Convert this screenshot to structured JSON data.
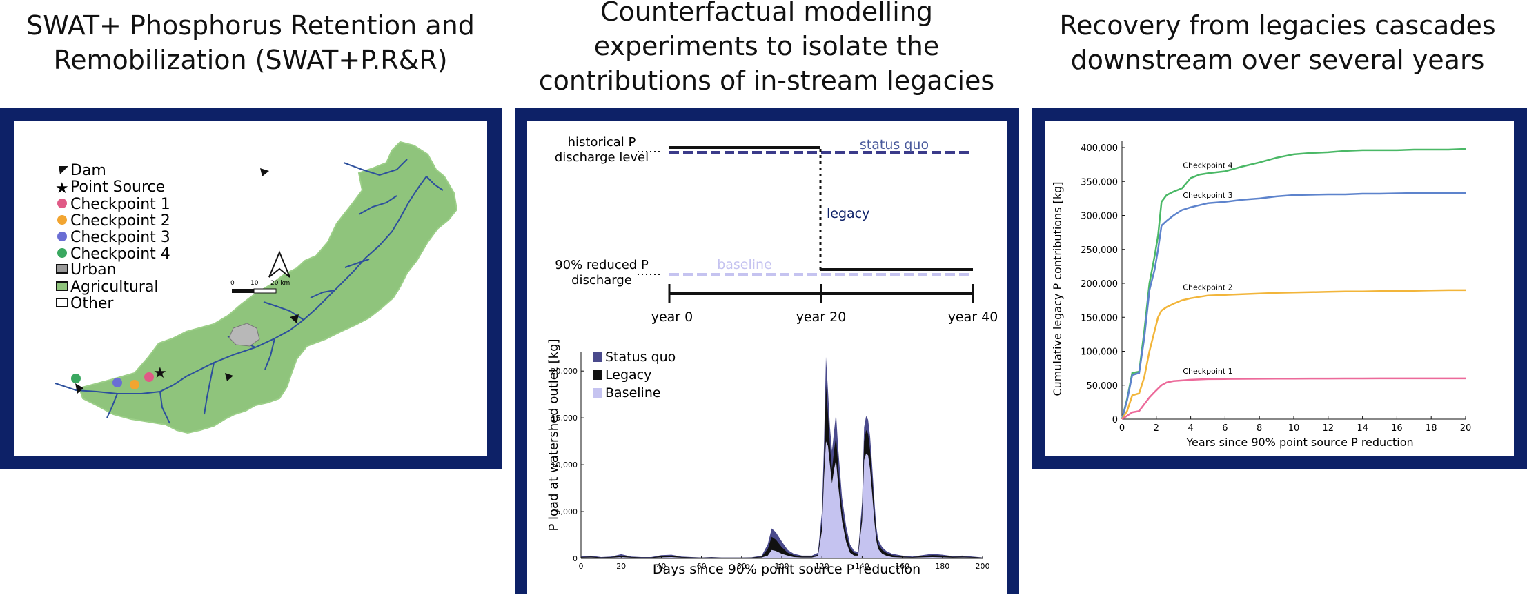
{
  "panel1": {
    "title_line1": "SWAT+ Phosphorus Retention and",
    "title_line2": "Remobilization (SWAT+P.R&R)",
    "legend": [
      "Dam",
      "Point Source",
      "Checkpoint 1",
      "Checkpoint 2",
      "Checkpoint 3",
      "Checkpoint 4",
      "Urban",
      "Agricultural",
      "Other"
    ],
    "scalebar": {
      "ticks": [
        "0",
        "10",
        "20 km"
      ]
    },
    "colors": {
      "checkpoint1": "#e05a86",
      "checkpoint2": "#f2a531",
      "checkpoint3": "#6a6ed4",
      "checkpoint4": "#3aa860",
      "agricultural": "#8fc47c",
      "stream": "#2c4f9c",
      "urban": "#9a9a9a"
    }
  },
  "panel2": {
    "title_line1": "Counterfactual modelling",
    "title_line2": "experiments to isolate the",
    "title_line3": "contributions of in-stream legacies",
    "schematic": {
      "historical_label_line1": "historical P",
      "historical_label_line2": "discharge level",
      "reduced_label_line1": "90% reduced P",
      "reduced_label_line2": "discharge",
      "status_quo": "status quo",
      "legacy": "legacy",
      "baseline": "baseline",
      "ticks": [
        "year 0",
        "year 20",
        "year 40"
      ]
    },
    "chart_data": {
      "type": "area",
      "xlabel": "Days since 90% point source P reduction",
      "ylabel": "P load at watershed outlet [kg]",
      "xlim": [
        0,
        200
      ],
      "ylim": [
        0,
        22000
      ],
      "xticks": [
        0,
        20,
        40,
        60,
        80,
        100,
        120,
        140,
        160,
        180,
        200
      ],
      "yticks": [
        0,
        5000,
        10000,
        15000,
        20000
      ],
      "ytick_labels": [
        "0",
        "5,000",
        "10,000",
        "15,000",
        "20,000"
      ],
      "legend": [
        "Status quo",
        "Legacy",
        "Baseline"
      ],
      "colors": {
        "status_quo": "#4a4a8c",
        "legacy": "#111111",
        "baseline": "#c5c3f0"
      },
      "x": [
        0,
        5,
        10,
        15,
        20,
        25,
        30,
        35,
        40,
        45,
        50,
        55,
        60,
        65,
        70,
        75,
        80,
        85,
        90,
        93,
        95,
        97,
        100,
        103,
        106,
        110,
        115,
        118,
        120,
        121,
        122,
        123,
        124,
        125,
        126,
        127,
        128,
        130,
        132,
        134,
        136,
        138,
        140,
        141,
        142,
        143,
        144,
        145,
        146,
        147,
        148,
        150,
        152,
        155,
        160,
        165,
        170,
        175,
        180,
        185,
        190,
        195,
        200
      ],
      "series": [
        {
          "name": "Status quo",
          "values": [
            200,
            300,
            150,
            200,
            450,
            200,
            150,
            150,
            350,
            400,
            200,
            150,
            100,
            150,
            100,
            100,
            100,
            120,
            300,
            1500,
            3200,
            2800,
            1800,
            900,
            500,
            300,
            300,
            600,
            5000,
            12000,
            21500,
            18000,
            14000,
            11500,
            13500,
            15500,
            12000,
            6500,
            3500,
            1500,
            800,
            700,
            6000,
            14000,
            15200,
            14800,
            13000,
            10000,
            6500,
            3500,
            2000,
            1200,
            800,
            500,
            300,
            200,
            350,
            500,
            400,
            250,
            300,
            200,
            100
          ]
        },
        {
          "name": "Legacy",
          "values": [
            150,
            200,
            100,
            150,
            300,
            150,
            100,
            100,
            250,
            300,
            150,
            100,
            80,
            100,
            80,
            80,
            80,
            90,
            200,
            1000,
            2300,
            2000,
            1200,
            600,
            350,
            200,
            200,
            400,
            4000,
            10000,
            18500,
            15500,
            12000,
            9500,
            11500,
            13000,
            10000,
            5200,
            2700,
            1100,
            600,
            500,
            5000,
            12500,
            13700,
            13300,
            11500,
            8800,
            5500,
            2800,
            1500,
            900,
            600,
            350,
            200,
            150,
            250,
            350,
            300,
            180,
            200,
            150,
            80
          ]
        },
        {
          "name": "Baseline",
          "values": [
            80,
            100,
            50,
            80,
            150,
            80,
            50,
            50,
            120,
            150,
            80,
            50,
            40,
            50,
            40,
            40,
            40,
            50,
            100,
            300,
            900,
            800,
            500,
            300,
            150,
            100,
            100,
            250,
            3000,
            8500,
            12500,
            12000,
            10000,
            8000,
            9500,
            10500,
            8000,
            4000,
            1800,
            600,
            300,
            300,
            4000,
            10500,
            11200,
            11000,
            9500,
            7000,
            4200,
            2000,
            1000,
            500,
            300,
            150,
            100,
            80,
            120,
            150,
            120,
            80,
            100,
            80,
            40
          ]
        }
      ]
    }
  },
  "panel3": {
    "title_line1": "Recovery from legacies cascades",
    "title_line2": "downstream over several years",
    "chart_data": {
      "type": "line",
      "xlabel": "Years since 90% point source P reduction",
      "ylabel": "Cumulative legacy P contributions [kg]",
      "xlim": [
        0,
        20
      ],
      "ylim": [
        0,
        400000
      ],
      "xticks": [
        0,
        2,
        4,
        6,
        8,
        10,
        12,
        14,
        16,
        18,
        20
      ],
      "yticks": [
        0,
        50000,
        100000,
        150000,
        200000,
        250000,
        300000,
        350000,
        400000
      ],
      "ytick_labels": [
        "0",
        "50,000",
        "100,000",
        "150,000",
        "200,000",
        "250,000",
        "300,000",
        "350,000",
        "400,000"
      ],
      "x": [
        0,
        0.3,
        0.6,
        1.0,
        1.3,
        1.6,
        1.9,
        2.1,
        2.3,
        2.6,
        3.0,
        3.5,
        4.0,
        4.5,
        5,
        6,
        7,
        8,
        9,
        10,
        11,
        12,
        13,
        14,
        15,
        16,
        17,
        18,
        19,
        20
      ],
      "series": [
        {
          "name": "Checkpoint 4",
          "color": "#4ab866",
          "values": [
            0,
            30000,
            68000,
            70000,
            130000,
            200000,
            240000,
            270000,
            320000,
            330000,
            335000,
            340000,
            355000,
            360000,
            362000,
            365000,
            372000,
            378000,
            385000,
            390000,
            392000,
            393000,
            395000,
            396000,
            396000,
            396000,
            397000,
            397000,
            397000,
            398000
          ]
        },
        {
          "name": "Checkpoint 3",
          "color": "#5d83cc",
          "values": [
            0,
            28000,
            65000,
            68000,
            120000,
            190000,
            220000,
            250000,
            285000,
            292000,
            300000,
            308000,
            312000,
            315000,
            318000,
            320000,
            323000,
            325000,
            328000,
            330000,
            330500,
            331000,
            331000,
            332000,
            332000,
            332500,
            333000,
            333000,
            333000,
            333000
          ]
        },
        {
          "name": "Checkpoint 2",
          "color": "#f2b53a",
          "values": [
            0,
            12000,
            35000,
            38000,
            62000,
            100000,
            130000,
            150000,
            160000,
            165000,
            170000,
            175000,
            178000,
            180000,
            182000,
            183000,
            184000,
            185000,
            186000,
            186500,
            187000,
            187500,
            188000,
            188000,
            188500,
            189000,
            189000,
            189500,
            190000,
            190000
          ]
        },
        {
          "name": "Checkpoint 1",
          "color": "#ec6a9a",
          "values": [
            0,
            5000,
            10000,
            12000,
            22000,
            32000,
            40000,
            45000,
            50000,
            54000,
            56000,
            57000,
            58000,
            58500,
            59000,
            59200,
            59400,
            59500,
            59600,
            59700,
            59800,
            59800,
            59900,
            59900,
            60000,
            60000,
            60000,
            60000,
            60000,
            60000
          ]
        }
      ]
    }
  }
}
